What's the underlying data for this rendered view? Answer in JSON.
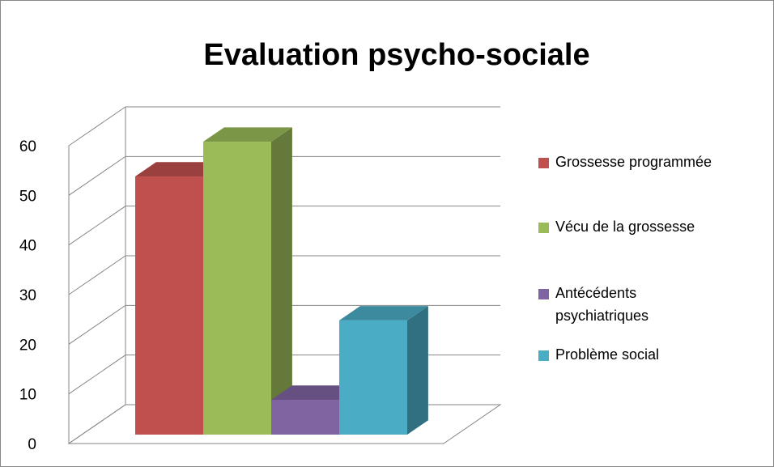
{
  "chart_data": {
    "type": "bar3d",
    "title": "Evaluation psycho-sociale",
    "categories": [
      null
    ],
    "series": [
      {
        "name": "Grossesse programmée",
        "color": "#c0504d",
        "values": [
          52
        ]
      },
      {
        "name": "Vécu de la grossesse",
        "color": "#9bbb59",
        "values": [
          59
        ]
      },
      {
        "name": "Antécédents psychiatriques",
        "color": "#8064a2",
        "values": [
          7
        ]
      },
      {
        "name": "Problème social",
        "color": "#4bacc6",
        "values": [
          23
        ]
      }
    ],
    "ylim": [
      0,
      60
    ],
    "yticks": [
      0,
      10,
      20,
      30,
      40,
      50,
      60
    ],
    "grid": true,
    "legend": "right"
  }
}
